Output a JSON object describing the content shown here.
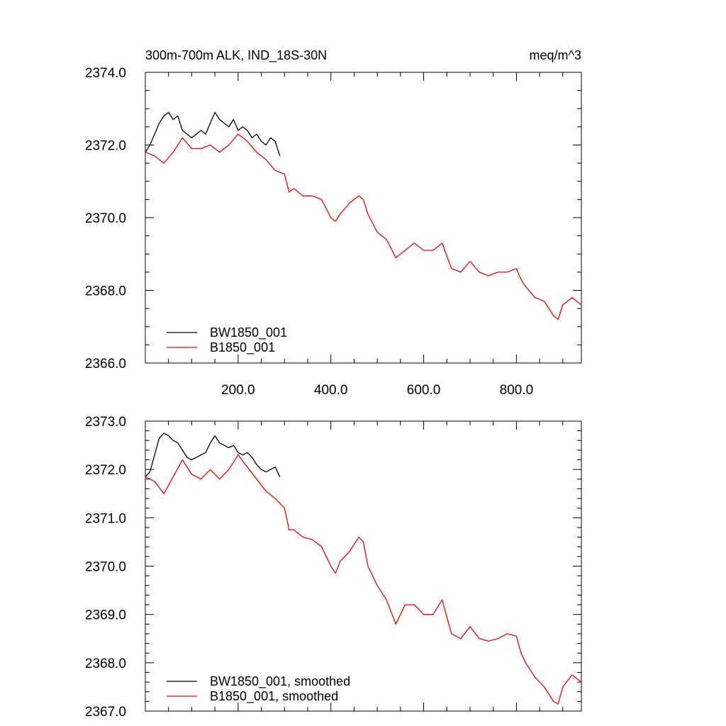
{
  "colors": {
    "BW1850_001": "#000000",
    "B1850_001": "#ff0000",
    "frame": "#000000",
    "background": "#ffffff"
  },
  "chart_data": [
    {
      "type": "line",
      "title_left": "300m-700m ALK, IND_18S-30N",
      "title_right": "meq/m^3",
      "xlabel": "",
      "ylabel": "",
      "xlim": [
        0,
        940
      ],
      "ylim": [
        2366.0,
        2374.0
      ],
      "x_ticks": [
        200.0,
        400.0,
        600.0,
        800.0
      ],
      "x_tick_labels": [
        "200.0",
        "400.0",
        "600.0",
        "800.0"
      ],
      "y_ticks": [
        2366.0,
        2368.0,
        2370.0,
        2372.0,
        2374.0
      ],
      "y_tick_labels": [
        "2366.0",
        "2368.0",
        "2370.0",
        "2372.0",
        "2374.0"
      ],
      "grid": false,
      "legend_position": "bottom-left",
      "series": [
        {
          "name": "BW1850_001",
          "color": "#000000",
          "x": [
            0,
            10,
            20,
            30,
            40,
            50,
            60,
            70,
            80,
            90,
            100,
            110,
            120,
            130,
            140,
            150,
            160,
            170,
            180,
            190,
            200,
            210,
            220,
            230,
            240,
            250,
            260,
            270,
            280,
            290
          ],
          "y": [
            2371.8,
            2372.0,
            2372.3,
            2372.6,
            2372.8,
            2372.9,
            2372.7,
            2372.8,
            2372.4,
            2372.3,
            2372.2,
            2372.3,
            2372.4,
            2372.3,
            2372.6,
            2372.9,
            2372.7,
            2372.6,
            2372.5,
            2372.7,
            2372.4,
            2372.5,
            2372.4,
            2372.2,
            2372.3,
            2372.1,
            2372.0,
            2372.2,
            2372.1,
            2371.7
          ]
        },
        {
          "name": "B1850_001",
          "color": "#ff0000",
          "x": [
            0,
            20,
            40,
            60,
            80,
            100,
            120,
            140,
            160,
            180,
            200,
            220,
            240,
            260,
            280,
            300,
            310,
            320,
            340,
            360,
            380,
            400,
            410,
            420,
            440,
            460,
            470,
            480,
            500,
            520,
            540,
            560,
            580,
            600,
            620,
            640,
            660,
            680,
            700,
            720,
            740,
            760,
            780,
            800,
            810,
            820,
            840,
            860,
            880,
            890,
            900,
            920,
            940
          ],
          "y": [
            2371.8,
            2371.7,
            2371.5,
            2371.8,
            2372.2,
            2371.9,
            2371.9,
            2372.0,
            2371.8,
            2372.0,
            2372.3,
            2372.1,
            2371.8,
            2371.6,
            2371.3,
            2371.2,
            2370.7,
            2370.8,
            2370.6,
            2370.6,
            2370.5,
            2370.0,
            2369.9,
            2370.1,
            2370.4,
            2370.6,
            2370.5,
            2370.1,
            2369.6,
            2369.4,
            2368.9,
            2369.1,
            2369.3,
            2369.1,
            2369.1,
            2369.3,
            2368.6,
            2368.5,
            2368.8,
            2368.5,
            2368.4,
            2368.5,
            2368.5,
            2368.6,
            2368.3,
            2368.1,
            2367.8,
            2367.7,
            2367.3,
            2367.2,
            2367.6,
            2367.8,
            2367.6
          ]
        }
      ]
    },
    {
      "type": "line",
      "title_left": "",
      "title_right": "",
      "xlabel": "",
      "ylabel": "",
      "xlim": [
        0,
        940
      ],
      "ylim": [
        2367.0,
        2373.0
      ],
      "x_ticks": [],
      "x_tick_labels": [],
      "y_ticks": [
        2367.0,
        2368.0,
        2369.0,
        2370.0,
        2371.0,
        2372.0,
        2373.0
      ],
      "y_tick_labels": [
        "2367.0",
        "2368.0",
        "2369.0",
        "2370.0",
        "2371.0",
        "2372.0",
        "2373.0"
      ],
      "grid": false,
      "legend_position": "bottom-left",
      "series": [
        {
          "name": "BW1850_001, smoothed",
          "color": "#000000",
          "x": [
            0,
            10,
            20,
            30,
            40,
            50,
            60,
            70,
            80,
            90,
            100,
            110,
            120,
            130,
            140,
            150,
            160,
            170,
            180,
            190,
            200,
            210,
            220,
            230,
            240,
            250,
            260,
            270,
            280,
            290
          ],
          "y": [
            2371.85,
            2371.95,
            2372.3,
            2372.65,
            2372.75,
            2372.7,
            2372.6,
            2372.55,
            2372.4,
            2372.25,
            2372.2,
            2372.25,
            2372.3,
            2372.35,
            2372.55,
            2372.7,
            2372.55,
            2372.5,
            2372.45,
            2372.5,
            2372.35,
            2372.3,
            2372.35,
            2372.25,
            2372.1,
            2372.0,
            2371.95,
            2372.0,
            2372.05,
            2371.85
          ]
        },
        {
          "name": "B1850_001, smoothed",
          "color": "#ff0000",
          "x": [
            0,
            20,
            40,
            60,
            80,
            100,
            120,
            140,
            160,
            180,
            200,
            220,
            240,
            260,
            280,
            300,
            310,
            320,
            340,
            360,
            380,
            400,
            410,
            420,
            440,
            460,
            470,
            480,
            500,
            520,
            540,
            560,
            580,
            600,
            620,
            640,
            660,
            680,
            700,
            720,
            740,
            760,
            780,
            800,
            810,
            820,
            840,
            860,
            880,
            890,
            900,
            920,
            940
          ],
          "y": [
            2371.85,
            2371.75,
            2371.5,
            2371.85,
            2372.2,
            2371.9,
            2371.8,
            2372.0,
            2371.8,
            2372.0,
            2372.3,
            2372.05,
            2371.8,
            2371.55,
            2371.4,
            2371.2,
            2370.75,
            2370.75,
            2370.6,
            2370.55,
            2370.4,
            2370.0,
            2369.85,
            2370.1,
            2370.3,
            2370.6,
            2370.5,
            2370.0,
            2369.6,
            2369.3,
            2368.8,
            2369.2,
            2369.2,
            2369.0,
            2369.0,
            2369.3,
            2368.6,
            2368.5,
            2368.75,
            2368.5,
            2368.45,
            2368.5,
            2368.6,
            2368.55,
            2368.2,
            2368.0,
            2367.7,
            2367.5,
            2367.2,
            2367.15,
            2367.5,
            2367.75,
            2367.6
          ]
        }
      ]
    }
  ]
}
